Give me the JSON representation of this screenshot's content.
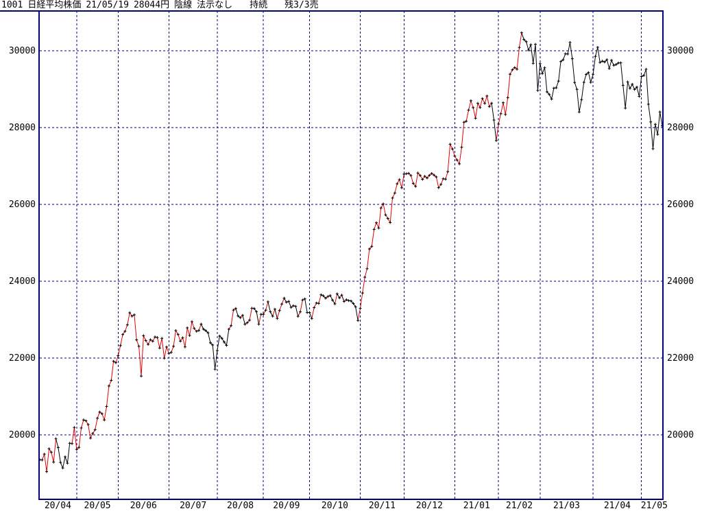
{
  "title_bar": {
    "code": "1001",
    "name": "日経平均株価",
    "date": "21/05/19",
    "price": "28044円",
    "candle": "陰線",
    "note": "法示なし",
    "status": "持続",
    "signal": "残3/3売"
  },
  "colors": {
    "frame": "#000080",
    "grid": "#000080",
    "line_up": "#e60000",
    "line_down": "#000000",
    "marker": "#000000",
    "text": "#000000",
    "background": "#ffffff"
  },
  "chart_data": {
    "type": "line",
    "title": "1001 日経平均株価 daily close line chart",
    "grid": true,
    "marker": "plus",
    "legend_position": "none",
    "ylim": [
      18300,
      31050
    ],
    "yticks": [
      20000,
      22000,
      24000,
      26000,
      28000,
      30000
    ],
    "ytick_labels_left": [
      "20000",
      "22000",
      "24000",
      "26000",
      "28000",
      "30000"
    ],
    "ytick_labels_right": [
      "20000",
      "22000",
      "24000",
      "26000",
      "28000",
      "30000"
    ],
    "months": [
      {
        "label": "20/04",
        "seg_colors": "rrrrrrrrbbbbbbrr",
        "values": [
          19353,
          19346,
          19499,
          19043,
          19638,
          19550,
          19290,
          19897,
          19669,
          19280,
          19137,
          19429,
          19262,
          19783,
          19771,
          20193
        ]
      },
      {
        "label": "20/05",
        "seg_colors": "rrrrrrrrrrrrrrrrrr",
        "values": [
          19619,
          19674,
          20179,
          20390,
          20366,
          20267,
          19914,
          20037,
          20133,
          20433,
          20595,
          20552,
          20388,
          20741,
          21271,
          21419,
          21916,
          21878
        ]
      },
      {
        "label": "20/06",
        "seg_colors": "rrrrrrrrrrrrrrrrrrrrrr",
        "values": [
          22062,
          22326,
          22614,
          22696,
          22864,
          23178,
          23091,
          23125,
          22473,
          22305,
          21531,
          22582,
          22456,
          22355,
          22479,
          22437,
          22549,
          22534,
          22260,
          22512,
          21995,
          22288
        ]
      },
      {
        "label": "20/07",
        "seg_colors": "rrrrrrrrrrrrrrrbbbbbb",
        "values": [
          22122,
          22146,
          22306,
          22714,
          22615,
          22439,
          22529,
          22291,
          22785,
          22587,
          22946,
          22771,
          22697,
          22718,
          22884,
          22752,
          22715,
          22657,
          22397,
          22339,
          21710
        ]
      },
      {
        "label": "20/08",
        "seg_colors": "bbbbbbrrrbbrbrrrbbbr",
        "values": [
          22195,
          22573,
          22514,
          22418,
          22330,
          22750,
          22843,
          23249,
          23289,
          23096,
          23051,
          23110,
          22880,
          22920,
          22985,
          23296,
          23290,
          23208,
          22882,
          23139
        ]
      },
      {
        "label": "20/09",
        "seg_colors": "brrbbrbrrrbrbrbbrrrb",
        "values": [
          23138,
          23247,
          23465,
          23205,
          23089,
          23274,
          23032,
          23235,
          23406,
          23559,
          23454,
          23475,
          23319,
          23360,
          23346,
          23087,
          23204,
          23511,
          23539,
          23185
        ]
      },
      {
        "label": "20/10",
        "seg_colors": "bbrrbrbbrrbbrbrbrbbbbb",
        "values": [
          23185,
          23029,
          23312,
          23433,
          23422,
          23647,
          23620,
          23559,
          23601,
          23626,
          23507,
          23411,
          23671,
          23567,
          23639,
          23474,
          23517,
          23494,
          23486,
          23419,
          23332,
          22977
        ]
      },
      {
        "label": "20/11",
        "seg_colors": "rrrrrrrrrrrrrrrrrrr",
        "values": [
          23295,
          23695,
          24105,
          24325,
          24839,
          24906,
          25349,
          25521,
          25385,
          25907,
          26014,
          25728,
          25634,
          25527,
          26165,
          26297,
          26537,
          26644,
          26433
        ]
      },
      {
        "label": "20/12",
        "seg_colors": "rrrrrrrrrrrrrrrrrrrrrr",
        "values": [
          26787,
          26800,
          26809,
          26751,
          26547,
          26467,
          26817,
          26756,
          26652,
          26732,
          26687,
          26757,
          26806,
          26763,
          26714,
          26436,
          26524,
          26668,
          26656,
          26854,
          27568,
          27444
        ]
      },
      {
        "label": "21/01",
        "seg_colors": "rrrrrrrrrrrrrrrrrbb",
        "values": [
          27258,
          27158,
          27055,
          27490,
          28139,
          28164,
          28456,
          28698,
          28519,
          28242,
          28633,
          28523,
          28756,
          28631,
          28822,
          28546,
          28635,
          28197,
          27663
        ]
      },
      {
        "label": "21/02",
        "seg_colors": "rrrrrrrrrrrbbbbbbb",
        "values": [
          28091,
          28362,
          28646,
          28341,
          28779,
          29388,
          29505,
          29562,
          29520,
          30084,
          30467,
          30292,
          30236,
          30017,
          30156,
          29671,
          30168,
          28966
        ]
      },
      {
        "label": "21/03",
        "seg_colors": "bbbbbbbbbbbbbbbbbbbbbbb",
        "values": [
          29663,
          29408,
          29559,
          28930,
          28864,
          28743,
          29027,
          29036,
          29211,
          29718,
          29766,
          29921,
          29914,
          30216,
          29792,
          29174,
          28995,
          28405,
          28729,
          29176,
          29384,
          29432,
          29179
        ]
      },
      {
        "label": "21/04",
        "seg_colors": "bbbbbbbbbbbbbbbbbbbbb",
        "values": [
          29388,
          29854,
          30089,
          29696,
          29730,
          29708,
          29768,
          29538,
          29751,
          29620,
          29642,
          29683,
          29685,
          29100,
          28508,
          29188,
          29020,
          29126,
          28992,
          29053,
          28812
        ]
      },
      {
        "label": "21/05",
        "seg_colors": "bbbbbbbbbb",
        "values": [
          29331,
          29358,
          29518,
          28608,
          28147,
          27448,
          28084,
          27824,
          28406,
          28044
        ]
      }
    ]
  }
}
